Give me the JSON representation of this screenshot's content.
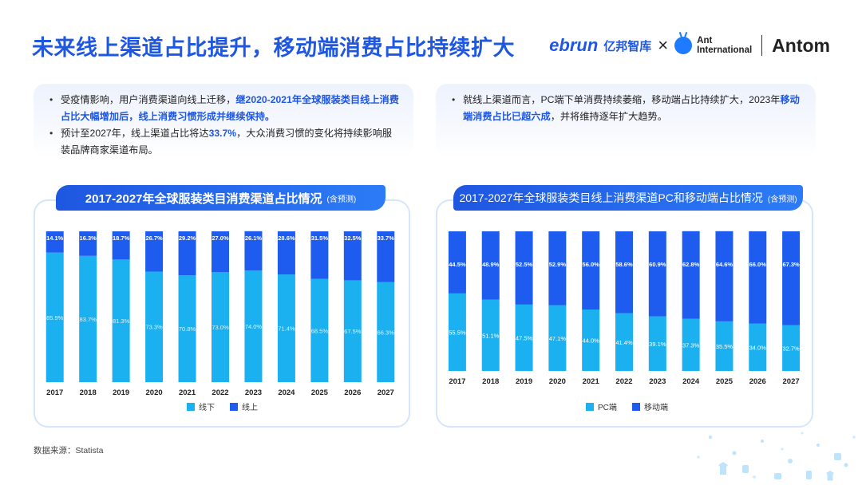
{
  "title": "未来线上渠道占比提升，移动端消费占比持续扩大",
  "logos": {
    "ebrun": "ebrun",
    "ebrun_cn": "亿邦智库",
    "x": "×",
    "ant_line1": "Ant",
    "ant_line2": "International",
    "antom": "Antom"
  },
  "notes_left": {
    "b1_plain": "受疫情影响，用户消费渠道向线上迁移，",
    "b1_hl": "继2020-2021年全球服装类目线上消费占比大幅增加后，线上消费习惯形成并继续保持。",
    "b2_pre": "预计至2027年，线上渠道占比将达",
    "b2_hl": "33.7%",
    "b2_post": "，大众消费习惯的变化将持续影响服装品牌商家渠道布局。"
  },
  "notes_right": {
    "b1_pre": "就线上渠道而言，PC端下单消费持续萎缩，移动端占比持续扩大，2023年",
    "b1_hl": "移动端消费占比已超六成",
    "b1_post": "，并将维持逐年扩大趋势。"
  },
  "source": "数据来源：Statista",
  "colors": {
    "light": "#1bb1f0",
    "dark": "#1e5cf0",
    "accent": "#1f57e0"
  },
  "chart_data": [
    {
      "type": "bar",
      "stacked": true,
      "title": "2017-2027年全球服装类目消费渠道占比情况",
      "subtitle": "(含预测)",
      "categories": [
        "2017",
        "2018",
        "2019",
        "2020",
        "2021",
        "2022",
        "2023",
        "2024",
        "2025",
        "2026",
        "2027"
      ],
      "series": [
        {
          "name": "线下",
          "color": "#1bb1f0",
          "values": [
            85.9,
            83.7,
            81.3,
            73.3,
            70.8,
            73.0,
            74.0,
            71.4,
            68.5,
            67.5,
            66.3
          ]
        },
        {
          "name": "线上",
          "color": "#1e5cf0",
          "values": [
            14.1,
            16.3,
            18.7,
            26.7,
            29.2,
            27.0,
            26.1,
            28.6,
            31.5,
            32.5,
            33.7
          ]
        }
      ],
      "ylim": [
        0,
        100
      ],
      "legend": "bottom-center"
    },
    {
      "type": "bar",
      "stacked": true,
      "title": "2017-2027年全球服装类目线上消费渠道PC和移动端占比情况",
      "subtitle": "(含预测)",
      "categories": [
        "2017",
        "2018",
        "2019",
        "2020",
        "2021",
        "2022",
        "2023",
        "2024",
        "2025",
        "2026",
        "2027"
      ],
      "series": [
        {
          "name": "PC端",
          "color": "#1bb1f0",
          "values": [
            55.5,
            51.1,
            47.5,
            47.1,
            44.0,
            41.4,
            39.1,
            37.3,
            35.5,
            34.0,
            32.7
          ]
        },
        {
          "name": "移动端",
          "color": "#1e5cf0",
          "values": [
            44.5,
            48.9,
            52.5,
            52.9,
            56.0,
            58.6,
            60.9,
            62.8,
            64.6,
            66.0,
            67.3
          ]
        }
      ],
      "ylim": [
        0,
        100
      ],
      "legend": "bottom-center"
    }
  ]
}
